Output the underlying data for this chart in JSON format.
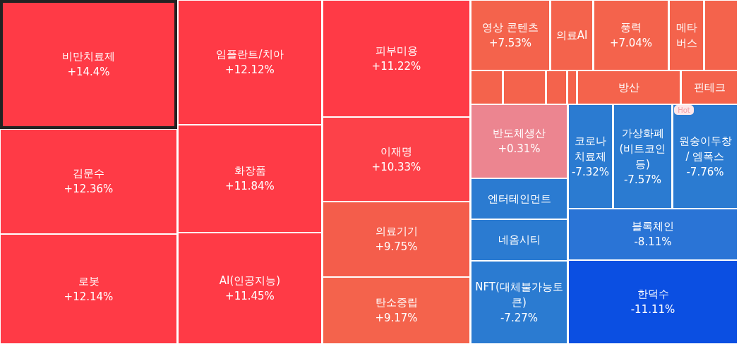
{
  "chart_data": {
    "type": "other",
    "categories": [
      "비만치료제",
      "김문수",
      "로봇",
      "임플란트/치아",
      "화장품",
      "AI(인공지능)",
      "피부미용",
      "이재명",
      "의료기기",
      "탄소중립",
      "영상 콘텐츠",
      "의료AI",
      "풍력",
      "메타버스",
      null,
      null,
      null,
      null,
      null,
      "방산",
      "핀테크",
      "반도체생산",
      "엔터테인먼트",
      "네옴시티",
      "NFT(대체불가능토큰)",
      "코로나 치료제",
      "가상화폐 (비트코인 등)",
      "원숭이두창 / 엠폭스",
      "블록체인",
      "한덕수"
    ],
    "values": [
      14.4,
      12.36,
      12.14,
      12.12,
      11.84,
      11.45,
      11.22,
      10.33,
      9.75,
      9.17,
      7.53,
      null,
      7.04,
      null,
      null,
      null,
      null,
      null,
      null,
      null,
      null,
      0.31,
      null,
      null,
      -7.27,
      -7.32,
      -7.57,
      -7.76,
      -8.11,
      -11.11
    ],
    "value_labels": [
      "+14.4%",
      "+12.36%",
      "+12.14%",
      "+12.12%",
      "+11.84%",
      "+11.45%",
      "+11.22%",
      "+10.33%",
      "+9.75%",
      "+9.17%",
      "+7.53%",
      null,
      "+7.04%",
      null,
      null,
      null,
      null,
      null,
      null,
      null,
      null,
      "+0.31%",
      null,
      null,
      "-7.27%",
      "-7.32%",
      "-7.57%",
      "-7.76%",
      "-8.11%",
      "-11.11%"
    ],
    "colors": [
      "#ff3a46",
      "#ff3a46",
      "#ff3a46",
      "#ff3a46",
      "#ff3a46",
      "#ff3a46",
      "#ff3a46",
      "#fd4149",
      "#f45d4b",
      "#f4634c",
      "#f4634c",
      "#f4634c",
      "#f4634c",
      "#f4634c",
      "#f4634c",
      "#f4634c",
      "#f4634c",
      "#f4634c",
      "#f4634c",
      "#f4634c",
      "#f4634c",
      "#ec8590",
      "#2b7bd1",
      "#2b7bd1",
      "#2b7bd1",
      "#2b7bd1",
      "#2b7bd1",
      "#2b7bd1",
      "#2a74d6",
      "#0b4fe2"
    ],
    "annotations": [
      "Hot"
    ]
  }
}
